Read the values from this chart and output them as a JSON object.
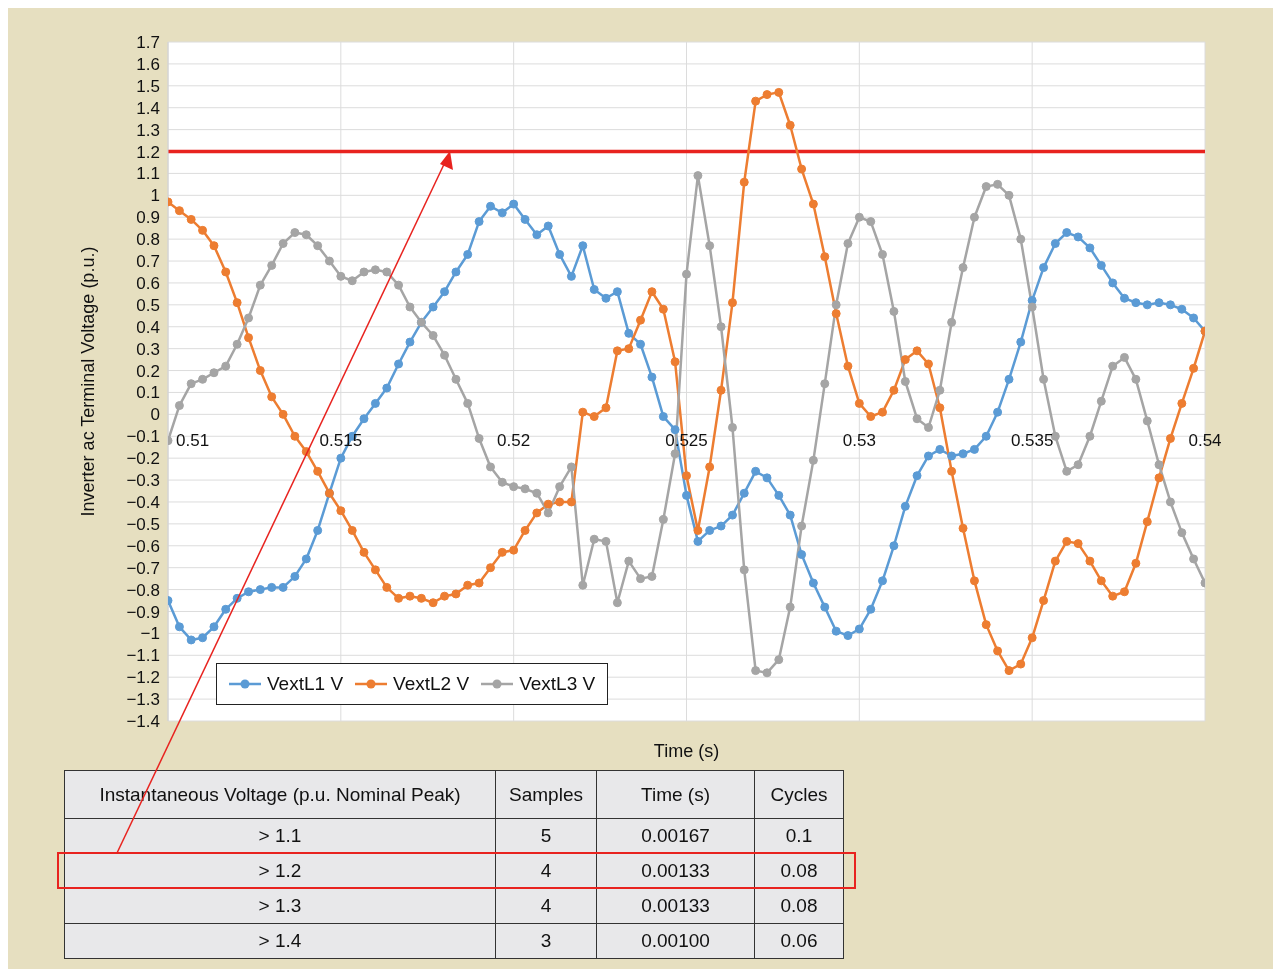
{
  "chart_data": [
    {
      "type": "line",
      "xlabel": "Time (s)",
      "ylabel": "Inverter ac Terminal Voltage (p.u.)",
      "x": [
        0.51,
        0.51033,
        0.51067,
        0.511,
        0.51133,
        0.51167,
        0.512,
        0.51233,
        0.51267,
        0.513,
        0.51333,
        0.51367,
        0.514,
        0.51433,
        0.51467,
        0.515,
        0.51533,
        0.51567,
        0.516,
        0.51633,
        0.51667,
        0.517,
        0.51733,
        0.51767,
        0.518,
        0.51833,
        0.51867,
        0.519,
        0.51933,
        0.51967,
        0.52,
        0.52033,
        0.52067,
        0.521,
        0.52133,
        0.52167,
        0.522,
        0.52233,
        0.52267,
        0.523,
        0.52333,
        0.52367,
        0.524,
        0.52433,
        0.52467,
        0.525,
        0.52533,
        0.52567,
        0.526,
        0.52633,
        0.52667,
        0.527,
        0.52733,
        0.52767,
        0.528,
        0.52833,
        0.52867,
        0.529,
        0.52933,
        0.52967,
        0.53,
        0.53033,
        0.53067,
        0.531,
        0.53133,
        0.53167,
        0.532,
        0.53233,
        0.53267,
        0.533,
        0.53333,
        0.53367,
        0.534,
        0.53433,
        0.53467,
        0.535,
        0.53533,
        0.53567,
        0.536,
        0.53633,
        0.53667,
        0.537,
        0.53733,
        0.53767,
        0.538,
        0.53833,
        0.53867,
        0.539,
        0.53933,
        0.53967,
        0.54
      ],
      "series": [
        {
          "name": "VextL1 V",
          "color": "#5b9bd5",
          "values": [
            -0.85,
            -0.97,
            -1.03,
            -1.02,
            -0.97,
            -0.89,
            -0.84,
            -0.81,
            -0.8,
            -0.79,
            -0.79,
            -0.74,
            -0.66,
            -0.53,
            -0.36,
            -0.2,
            -0.1,
            -0.02,
            0.05,
            0.12,
            0.23,
            0.33,
            0.42,
            0.49,
            0.56,
            0.65,
            0.73,
            0.88,
            0.95,
            0.92,
            0.96,
            0.89,
            0.82,
            0.86,
            0.73,
            0.63,
            0.77,
            0.57,
            0.53,
            0.56,
            0.37,
            0.32,
            0.17,
            -0.01,
            -0.07,
            -0.37,
            -0.58,
            -0.53,
            -0.51,
            -0.46,
            -0.36,
            -0.26,
            -0.29,
            -0.37,
            -0.46,
            -0.64,
            -0.77,
            -0.88,
            -0.99,
            -1.01,
            -0.98,
            -0.89,
            -0.76,
            -0.6,
            -0.42,
            -0.28,
            -0.19,
            -0.16,
            -0.19,
            -0.18,
            -0.16,
            -0.1,
            0.01,
            0.16,
            0.33,
            0.52,
            0.67,
            0.78,
            0.83,
            0.81,
            0.76,
            0.68,
            0.6,
            0.53,
            0.51,
            0.5,
            0.51,
            0.5,
            0.48,
            0.44,
            0.38
          ]
        },
        {
          "name": "VextL2 V",
          "color": "#ed7d31",
          "values": [
            0.97,
            0.93,
            0.89,
            0.84,
            0.77,
            0.65,
            0.51,
            0.35,
            0.2,
            0.08,
            0.0,
            -0.1,
            -0.17,
            -0.26,
            -0.36,
            -0.44,
            -0.53,
            -0.63,
            -0.71,
            -0.79,
            -0.84,
            -0.83,
            -0.84,
            -0.86,
            -0.83,
            -0.82,
            -0.78,
            -0.77,
            -0.7,
            -0.63,
            -0.62,
            -0.53,
            -0.45,
            -0.41,
            -0.4,
            -0.4,
            0.01,
            -0.01,
            0.03,
            0.29,
            0.3,
            0.43,
            0.56,
            0.48,
            0.24,
            -0.28,
            -0.53,
            -0.24,
            0.11,
            0.51,
            1.06,
            1.43,
            1.46,
            1.47,
            1.32,
            1.12,
            0.96,
            0.72,
            0.46,
            0.22,
            0.05,
            -0.01,
            0.01,
            0.11,
            0.25,
            0.29,
            0.23,
            0.03,
            -0.26,
            -0.52,
            -0.76,
            -0.96,
            -1.08,
            -1.17,
            -1.14,
            -1.02,
            -0.85,
            -0.67,
            -0.58,
            -0.59,
            -0.67,
            -0.76,
            -0.83,
            -0.81,
            -0.68,
            -0.49,
            -0.29,
            -0.11,
            0.05,
            0.21,
            0.38
          ]
        },
        {
          "name": "VextL3 V",
          "color": "#a5a5a5",
          "values": [
            -0.12,
            0.04,
            0.14,
            0.16,
            0.19,
            0.22,
            0.32,
            0.44,
            0.59,
            0.68,
            0.78,
            0.83,
            0.82,
            0.77,
            0.7,
            0.63,
            0.61,
            0.65,
            0.66,
            0.65,
            0.59,
            0.49,
            0.42,
            0.36,
            0.27,
            0.16,
            0.05,
            -0.11,
            -0.24,
            -0.31,
            -0.33,
            -0.34,
            -0.36,
            -0.45,
            -0.33,
            -0.24,
            -0.78,
            -0.57,
            -0.58,
            -0.86,
            -0.67,
            -0.75,
            -0.74,
            -0.48,
            -0.18,
            0.64,
            1.09,
            0.77,
            0.4,
            -0.06,
            -0.71,
            -1.17,
            -1.18,
            -1.12,
            -0.88,
            -0.51,
            -0.21,
            0.14,
            0.5,
            0.78,
            0.9,
            0.88,
            0.73,
            0.47,
            0.15,
            -0.02,
            -0.06,
            0.11,
            0.42,
            0.67,
            0.9,
            1.04,
            1.05,
            1.0,
            0.8,
            0.49,
            0.16,
            -0.1,
            -0.26,
            -0.23,
            -0.1,
            0.06,
            0.22,
            0.26,
            0.16,
            -0.03,
            -0.23,
            -0.4,
            -0.54,
            -0.66,
            -0.77
          ]
        }
      ],
      "xlim": [
        0.51,
        0.54
      ],
      "xticks": [
        0.51,
        0.515,
        0.52,
        0.525,
        0.53,
        0.535,
        0.54
      ],
      "ylim": [
        -1.4,
        1.7
      ],
      "yticks": [
        -1.4,
        -1.3,
        -1.2,
        -1.1,
        -1,
        -0.9,
        -0.8,
        -0.7,
        -0.6,
        -0.5,
        -0.4,
        -0.3,
        -0.2,
        -0.1,
        0,
        0.1,
        0.2,
        0.3,
        0.4,
        0.5,
        0.6,
        0.7,
        0.8,
        0.9,
        1,
        1.1,
        1.2,
        1.3,
        1.4,
        1.5,
        1.6,
        1.7
      ],
      "grid": true,
      "legend": "bottom left",
      "marker": "circle",
      "line_style": "solid",
      "ref_lines": [
        {
          "axis": "y",
          "value": 1.2,
          "color": "#e8231f"
        }
      ]
    },
    {
      "type": "other",
      "annotations": [
        "Instantaneous Voltage (p.u. Nominal Peak)",
        "Samples",
        "Time (s)",
        "Cycles",
        "> 1.1",
        "5",
        "0.00167",
        "0.1",
        "> 1.2",
        "4",
        "0.00133",
        "0.08",
        "> 1.3",
        "4",
        "0.00133",
        "0.08",
        "> 1.4",
        "3",
        "0.00100",
        "0.06"
      ]
    }
  ]
}
